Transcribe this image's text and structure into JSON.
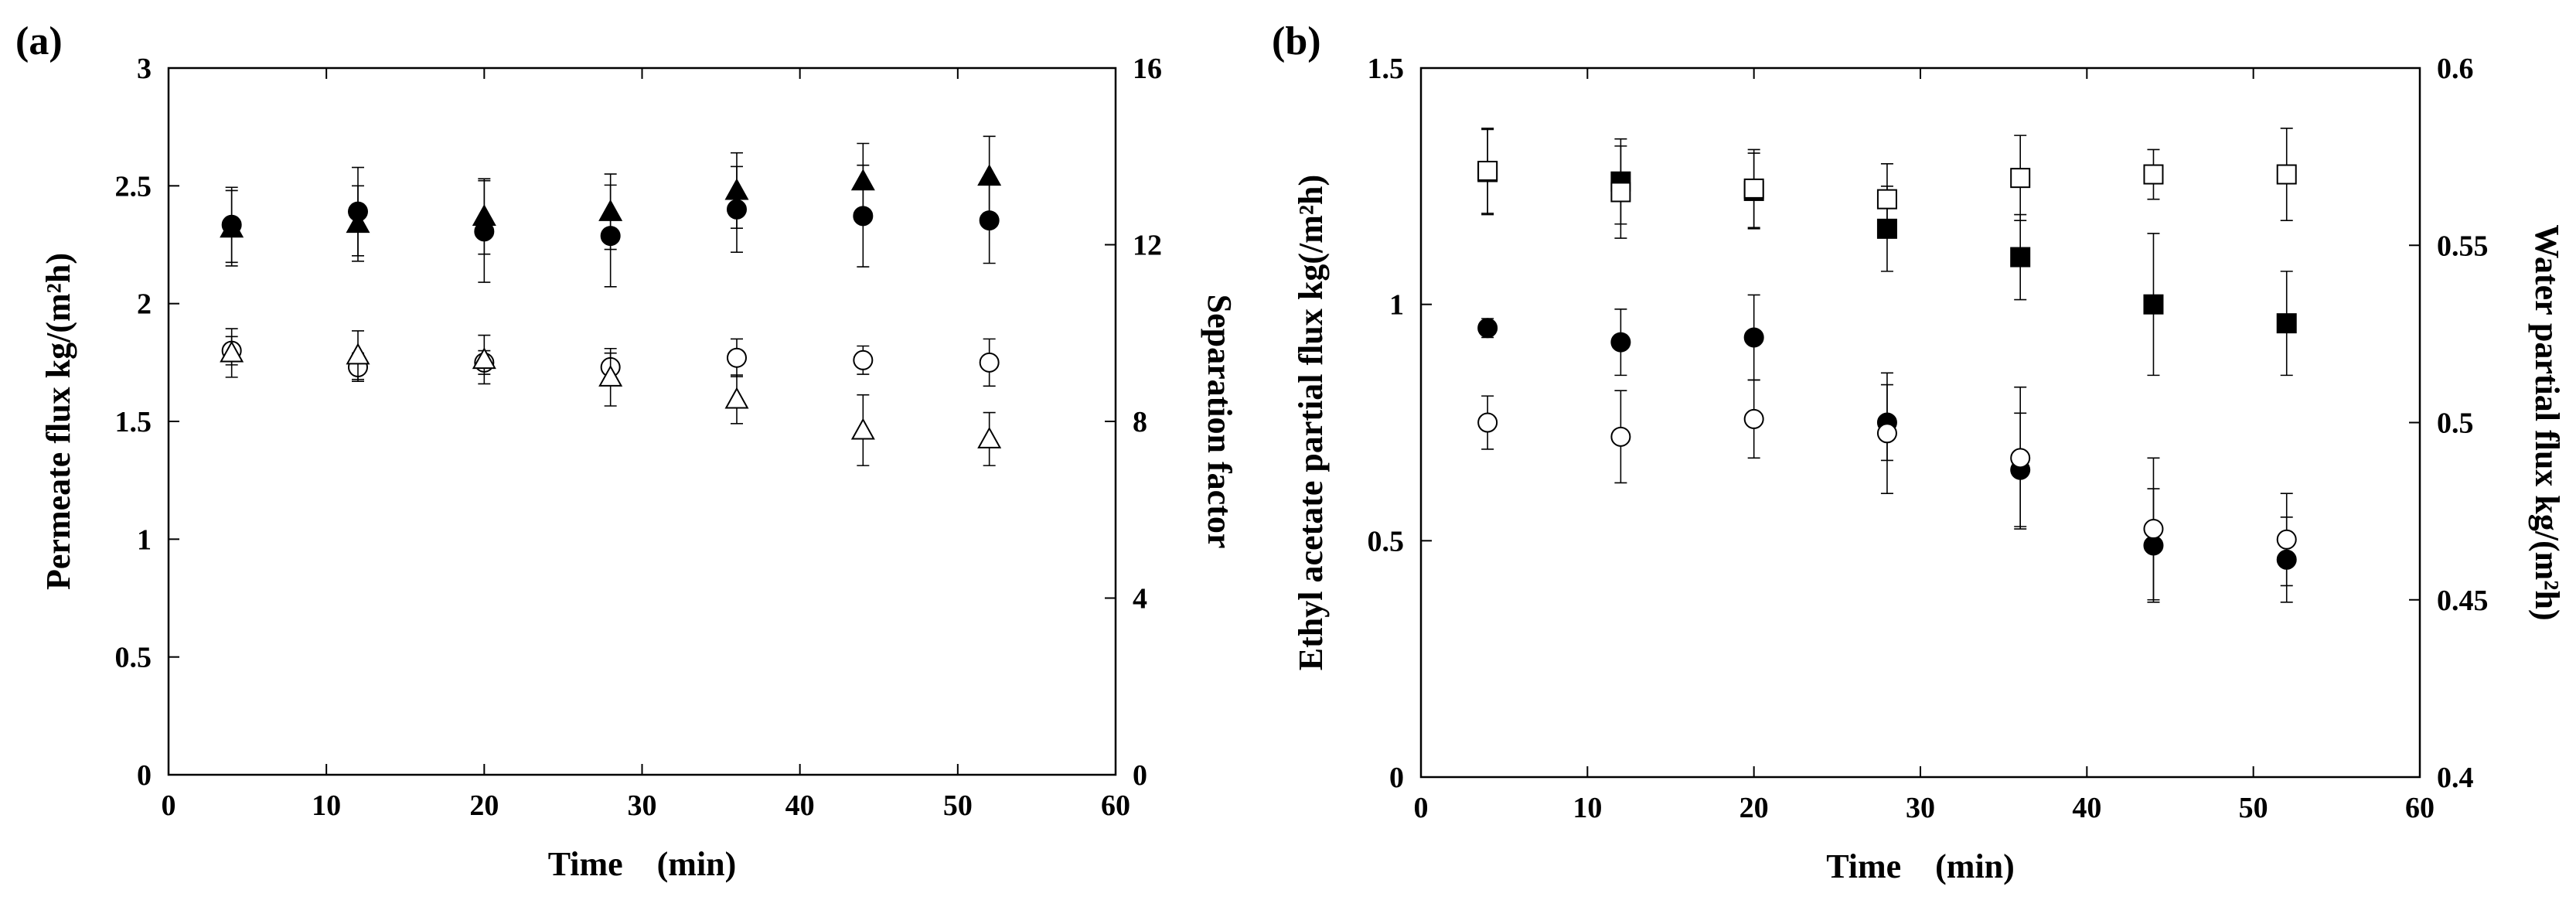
{
  "chart_data": [
    {
      "panel_label": "(a)",
      "type": "scatter",
      "xlabel": "Time　(min)",
      "ylabel": "Permeate flux kg/(m²h)",
      "y2label": "Separation factor",
      "xlim": [
        0,
        60
      ],
      "ylim": [
        0,
        3
      ],
      "y2lim": [
        0,
        16
      ],
      "x_ticks": [
        0,
        10,
        20,
        30,
        40,
        50,
        60
      ],
      "y_ticks": [
        0,
        0.5,
        1,
        1.5,
        2,
        2.5,
        3
      ],
      "y2_ticks": [
        0,
        4,
        8,
        12,
        16
      ],
      "x": [
        4,
        12,
        20,
        28,
        36,
        44,
        52
      ],
      "series": [
        {
          "marker": "triangle-filled",
          "axis": "left",
          "values": [
            2.32,
            2.34,
            2.37,
            2.39,
            2.48,
            2.52,
            2.54
          ],
          "errors": [
            0.16,
            0.16,
            0.16,
            0.16,
            0.16,
            0.16,
            0.17
          ]
        },
        {
          "marker": "circle-filled",
          "axis": "right",
          "values": [
            12.45,
            12.75,
            12.3,
            12.2,
            12.8,
            12.65,
            12.55
          ],
          "errors": [
            0.85,
            1.0,
            1.15,
            1.15,
            0.97,
            1.15,
            0.97
          ]
        },
        {
          "marker": "circle-open",
          "axis": "left",
          "values": [
            1.8,
            1.73,
            1.75,
            1.73,
            1.77,
            1.76,
            1.75
          ],
          "errors": [
            0.06,
            0.06,
            0.05,
            0.06,
            0.08,
            0.06,
            0.1
          ]
        },
        {
          "marker": "triangle-open",
          "axis": "right",
          "values": [
            9.55,
            9.5,
            9.4,
            9.0,
            8.5,
            7.8,
            7.6
          ],
          "errors": [
            0.55,
            0.55,
            0.55,
            0.65,
            0.55,
            0.8,
            0.6
          ]
        }
      ]
    },
    {
      "panel_label": "(b)",
      "type": "scatter",
      "xlabel": "Time　(min)",
      "ylabel": "Ethyl acetate partial  flux kg(/m²h)",
      "y2label": "Water partial  flux kg/(m²h)",
      "xlim": [
        0,
        60
      ],
      "ylim": [
        0,
        1.5
      ],
      "y2lim": [
        0.4,
        0.6
      ],
      "x_ticks": [
        0,
        10,
        20,
        30,
        40,
        50,
        60
      ],
      "y_ticks": [
        0,
        0.5,
        1,
        1.5
      ],
      "y2_ticks": [
        0.4,
        0.45,
        0.5,
        0.55,
        0.6
      ],
      "x": [
        4,
        12,
        20,
        28,
        36,
        44,
        52
      ],
      "series": [
        {
          "marker": "square-filled",
          "axis": "left",
          "values": [
            1.28,
            1.26,
            1.24,
            1.16,
            1.1,
            1.0,
            0.96
          ],
          "errors": [
            0.09,
            0.09,
            0.08,
            0.09,
            0.09,
            0.15,
            0.11
          ]
        },
        {
          "marker": "square-open",
          "axis": "right",
          "values": [
            0.571,
            0.565,
            0.566,
            0.563,
            0.569,
            0.57,
            0.57
          ],
          "errors": [
            0.012,
            0.013,
            0.011,
            0.01,
            0.012,
            0.007,
            0.013
          ]
        },
        {
          "marker": "circle-filled",
          "axis": "left",
          "values": [
            0.95,
            0.92,
            0.93,
            0.75,
            0.65,
            0.49,
            0.46
          ],
          "errors": [
            0.02,
            0.07,
            0.09,
            0.08,
            0.12,
            0.12,
            0.09
          ]
        },
        {
          "marker": "circle-open",
          "axis": "right",
          "values": [
            0.5,
            0.496,
            0.501,
            0.497,
            0.49,
            0.47,
            0.467
          ],
          "errors": [
            0.0075,
            0.013,
            0.011,
            0.017,
            0.02,
            0.02,
            0.013
          ]
        }
      ]
    }
  ]
}
